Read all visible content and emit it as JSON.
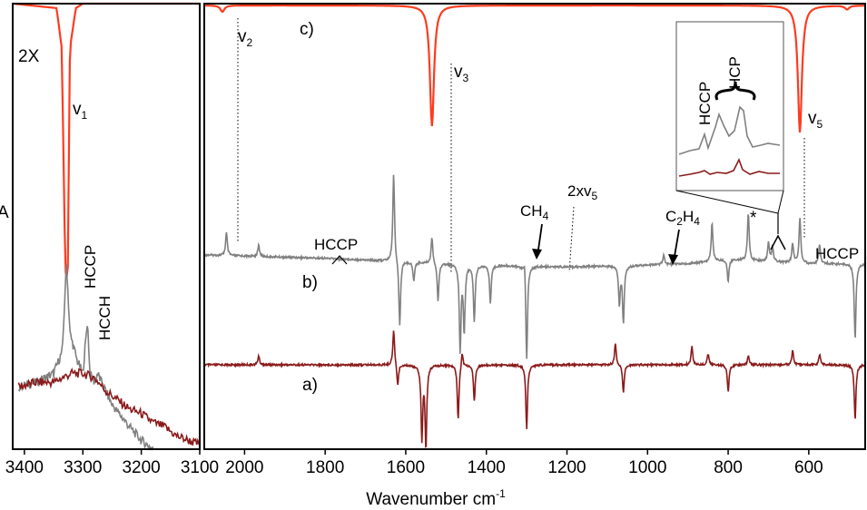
{
  "chart_data": [
    {
      "type": "line",
      "panel": "left",
      "xlabel": "",
      "ylabel": "A",
      "xlim": [
        3420,
        3100
      ],
      "x_reversed": true,
      "x_ticks": [
        3400,
        3300,
        3200,
        3100
      ],
      "scale_label": "2X",
      "series": [
        {
          "color": "#ff3b1f",
          "x": [
            3420,
            3345,
            3336,
            3330,
            3326,
            3322,
            3312,
            3300,
            3100
          ],
          "y": [
            1.0,
            0.99,
            0.9,
            0.4,
            0.38,
            0.9,
            0.99,
            1.0,
            1.0
          ]
        },
        {
          "color": "#808080",
          "x": [
            3410,
            3380,
            3350,
            3335,
            3328,
            3322,
            3310,
            3300,
            3292,
            3288,
            3280,
            3275,
            3250,
            3220,
            3200,
            3180
          ],
          "y": [
            0.14,
            0.15,
            0.17,
            0.22,
            0.42,
            0.26,
            0.2,
            0.17,
            0.29,
            0.17,
            0.15,
            0.17,
            0.1,
            0.05,
            0.02,
            0.0
          ]
        },
        {
          "color": "#8b1a1a",
          "x": [
            3410,
            3380,
            3350,
            3320,
            3300,
            3280,
            3260,
            3240,
            3220,
            3200,
            3180,
            3160,
            3140,
            3120,
            3100
          ],
          "y": [
            0.14,
            0.15,
            0.15,
            0.17,
            0.17,
            0.16,
            0.13,
            0.11,
            0.09,
            0.08,
            0.06,
            0.05,
            0.03,
            0.02,
            0.01
          ]
        }
      ],
      "annotations": [
        {
          "base": "v",
          "sub": "1",
          "x": 3315
        },
        {
          "text": "HCCP",
          "x": 3292
        },
        {
          "text": "HCCH",
          "x": 3275
        }
      ]
    },
    {
      "type": "line",
      "panel": "right",
      "xlabel_base": "Wavenumber cm",
      "xlabel_sup": "-1",
      "xlim": [
        2100,
        460
      ],
      "x_reversed": true,
      "x_ticks": [
        2000,
        1800,
        1600,
        1400,
        1200,
        1000,
        800,
        600
      ],
      "series": [
        {
          "name": "c)",
          "color": "#ff3b1f",
          "peaks": [
            {
              "x": 2055,
              "depth": 0.05,
              "w": 6
            },
            {
              "x": 1535,
              "depth": 0.95,
              "w": 6
            },
            {
              "x": 622,
              "depth": 1.0,
              "w": 6
            },
            {
              "x": 505,
              "depth": 0.03,
              "w": 6
            }
          ]
        },
        {
          "name": "b)",
          "color": "#808080",
          "baseline": [
            [
              2100,
              0.66
            ],
            [
              1800,
              0.63
            ],
            [
              1600,
              0.6
            ],
            [
              1400,
              0.57
            ],
            [
              1200,
              0.55
            ],
            [
              900,
              0.58
            ],
            [
              800,
              0.62
            ],
            [
              700,
              0.6
            ],
            [
              600,
              0.58
            ],
            [
              460,
              0.58
            ]
          ],
          "peaks": [
            {
              "x": 2045,
              "h": 0.12
            },
            {
              "x": 1965,
              "h": 0.06
            },
            {
              "x": 1630,
              "h": 0.47
            },
            {
              "x": 1615,
              "h": -0.35
            },
            {
              "x": 1580,
              "h": -0.1
            },
            {
              "x": 1535,
              "h": 0.14
            },
            {
              "x": 1520,
              "h": -0.2
            },
            {
              "x": 1465,
              "h": -0.45
            },
            {
              "x": 1455,
              "h": -0.35
            },
            {
              "x": 1430,
              "h": -0.3
            },
            {
              "x": 1390,
              "h": -0.2
            },
            {
              "x": 1305,
              "h": 0.08
            },
            {
              "x": 1300,
              "h": -0.5
            },
            {
              "x": 1070,
              "h": -0.2
            },
            {
              "x": 1060,
              "h": -0.3
            },
            {
              "x": 960,
              "h": 0.05
            },
            {
              "x": 840,
              "h": 0.2
            },
            {
              "x": 800,
              "h": -0.12
            },
            {
              "x": 750,
              "h": 0.25
            },
            {
              "x": 700,
              "h": 0.1
            },
            {
              "x": 690,
              "h": 0.08
            },
            {
              "x": 640,
              "h": 0.1
            },
            {
              "x": 622,
              "h": 0.24
            },
            {
              "x": 573,
              "h": 0.1
            },
            {
              "x": 485,
              "h": -0.4
            }
          ]
        },
        {
          "name": "a)",
          "color": "#8b1a1a",
          "baseline": [
            [
              2100,
              0.0
            ],
            [
              460,
              0.0
            ]
          ],
          "peaks": [
            {
              "x": 1965,
              "h": 0.05
            },
            {
              "x": 1630,
              "h": 0.2
            },
            {
              "x": 1620,
              "h": -0.12
            },
            {
              "x": 1560,
              "h": -0.4
            },
            {
              "x": 1550,
              "h": -0.45
            },
            {
              "x": 1470,
              "h": -0.3
            },
            {
              "x": 1460,
              "h": 0.08
            },
            {
              "x": 1430,
              "h": -0.2
            },
            {
              "x": 1300,
              "h": -0.35
            },
            {
              "x": 1080,
              "h": 0.12
            },
            {
              "x": 1060,
              "h": -0.15
            },
            {
              "x": 890,
              "h": 0.1
            },
            {
              "x": 850,
              "h": 0.06
            },
            {
              "x": 800,
              "h": -0.15
            },
            {
              "x": 750,
              "h": 0.05
            },
            {
              "x": 640,
              "h": 0.08
            },
            {
              "x": 573,
              "h": 0.06
            },
            {
              "x": 485,
              "h": -0.3
            }
          ]
        }
      ],
      "annotations": [
        {
          "base": "v",
          "sub": "2",
          "x": 2055
        },
        {
          "base": "v",
          "sub": "3",
          "x": 1535
        },
        {
          "base": "v",
          "sub": "5",
          "x": 622
        },
        {
          "base": "CH",
          "sub": "4",
          "x": 1305
        },
        {
          "base": "2xv",
          "sub": "5",
          "x": 1215
        },
        {
          "base": "C",
          "sub": "2",
          "rest": "H",
          "sub2": "4",
          "x": 960
        },
        {
          "text": "HCCP",
          "x": 1800
        },
        {
          "text": "HCCP",
          "x": 540
        },
        {
          "text": "*",
          "x": 750
        }
      ],
      "inset": {
        "labels": [
          "HCCP",
          "HCP"
        ]
      }
    }
  ]
}
